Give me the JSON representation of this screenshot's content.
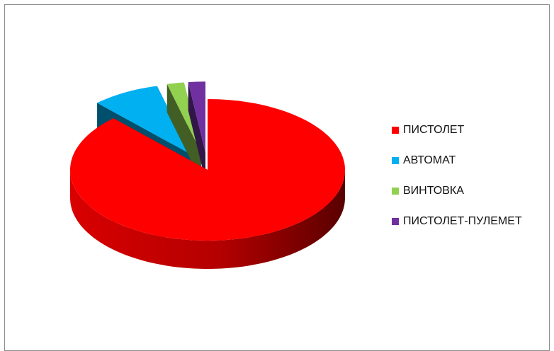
{
  "chart_data": {
    "type": "pie",
    "style": "3d-exploded",
    "categories": [
      "ПИСТОЛЕТ",
      "АВТОМАТ",
      "ВИНТОВКА",
      "ПИСТОЛЕТ-ПУЛЕМЕТ"
    ],
    "values": [
      88,
      8,
      2,
      2
    ],
    "colors": [
      "#ff0000",
      "#00b0f0",
      "#92d050",
      "#7030a0"
    ],
    "legend_position": "right"
  }
}
